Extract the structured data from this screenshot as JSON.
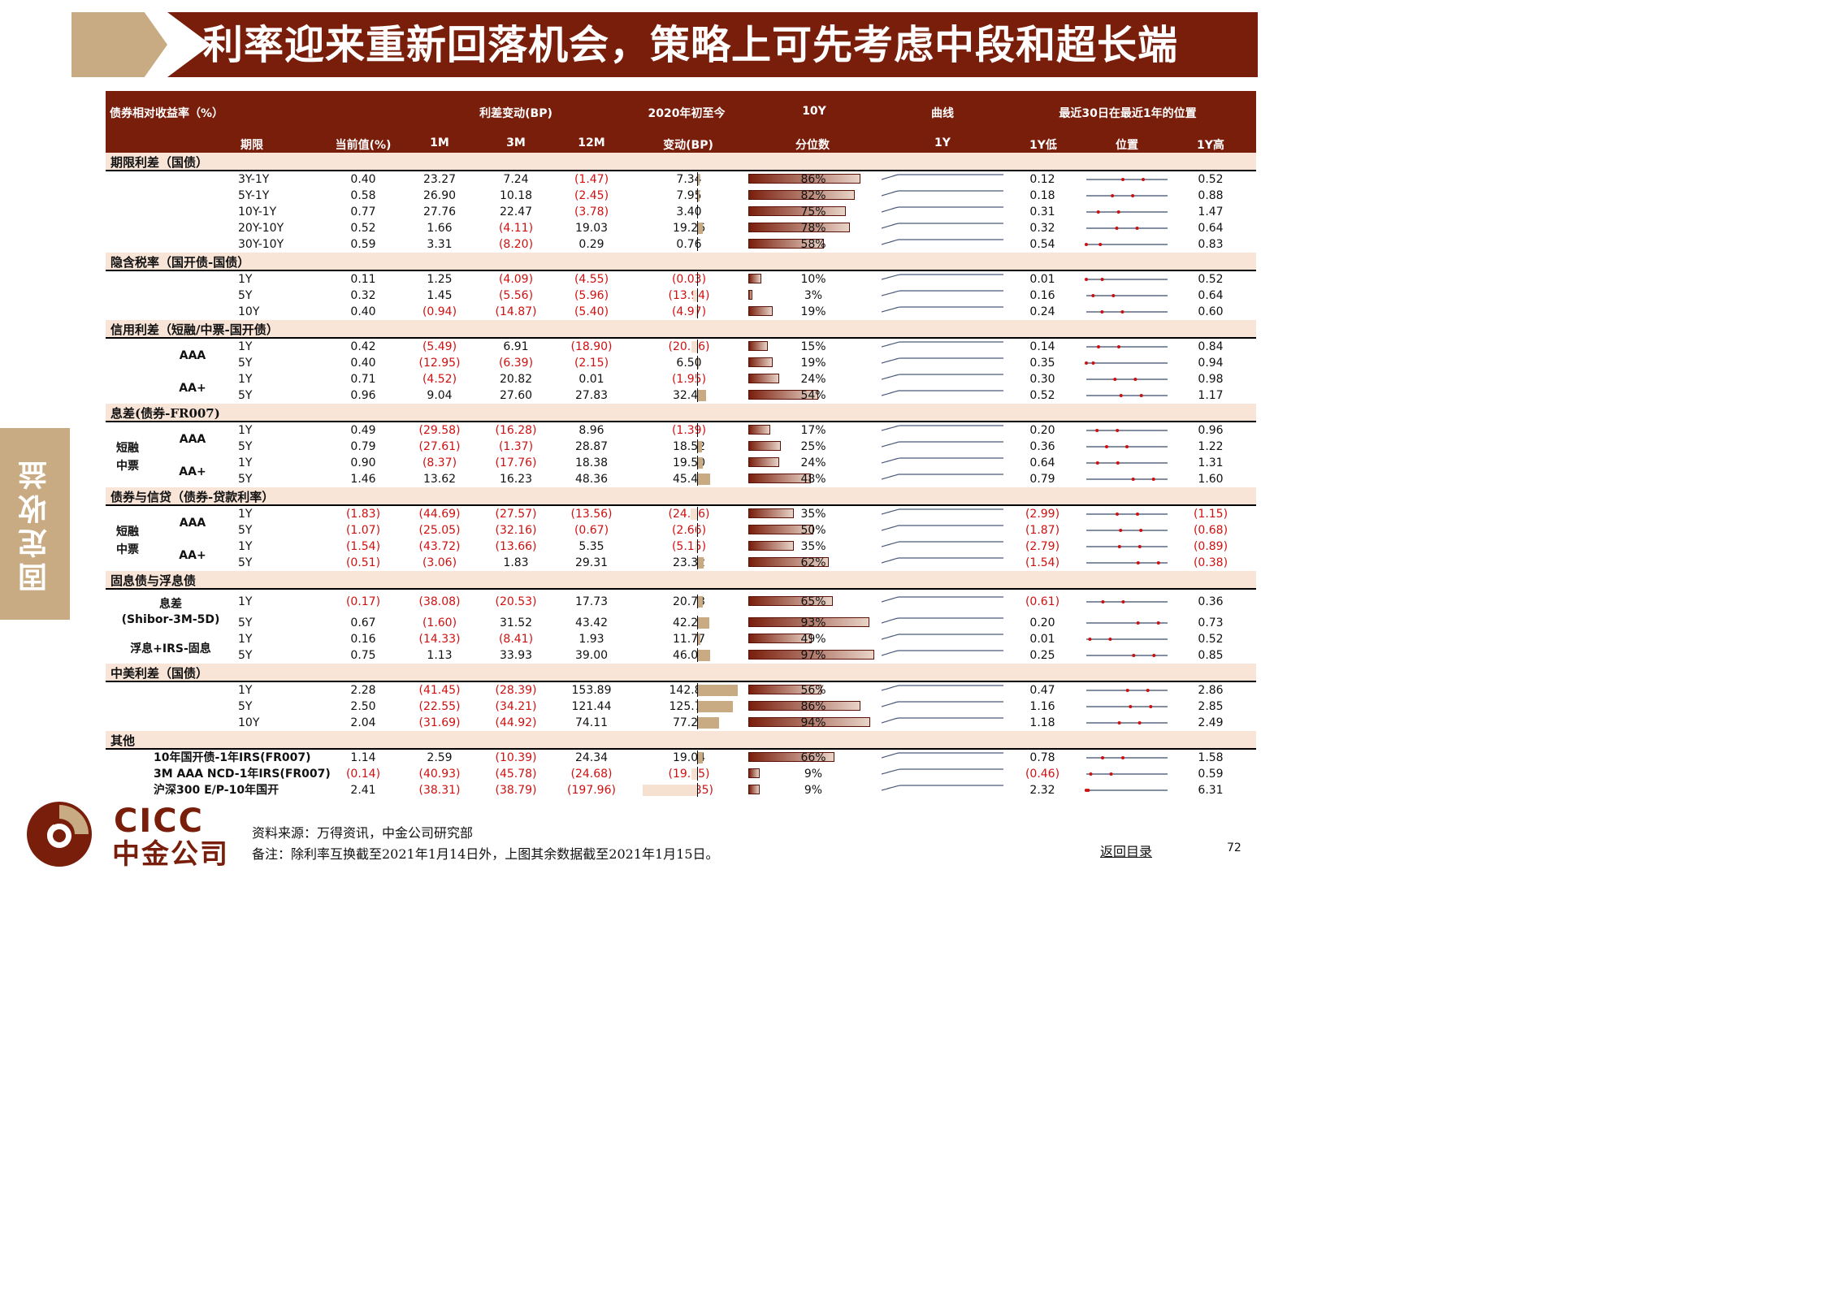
{
  "title": "利率迎来重新回落机会，策略上可先考虑中段和超长端",
  "side_label": "固定收益",
  "header": {
    "row1": {
      "col1": "债券相对收益率（%）",
      "spread": "利差变动(BP)",
      "ytd": "2020年初至今",
      "tenY": "10Y",
      "curve": "曲线",
      "pos": "最近30日在最近1年的位置"
    },
    "row2": {
      "term": "期限",
      "current": "当前值(%)",
      "m1": "1M",
      "m3": "3M",
      "m12": "12M",
      "chg": "变动(BP)",
      "pct": "分位数",
      "y1": "1Y",
      "low": "1Y低",
      "position": "位置",
      "high": "1Y高"
    }
  },
  "sections": [
    {
      "title": "期限利差（国债）",
      "groups": [],
      "rows": [
        {
          "term": "3Y-1Y",
          "cur": "0.40",
          "m1": "23.27",
          "m3": "7.24",
          "m12": "(1.47)",
          "ytd": "7.34",
          "pct": "86%",
          "low": "0.12",
          "high": "0.52"
        },
        {
          "term": "5Y-1Y",
          "cur": "0.58",
          "m1": "26.90",
          "m3": "10.18",
          "m12": "(2.45)",
          "ytd": "7.95",
          "pct": "82%",
          "low": "0.18",
          "high": "0.88"
        },
        {
          "term": "10Y-1Y",
          "cur": "0.77",
          "m1": "27.76",
          "m3": "22.47",
          "m12": "(3.78)",
          "ytd": "3.40",
          "pct": "75%",
          "low": "0.31",
          "high": "1.47"
        },
        {
          "term": "20Y-10Y",
          "cur": "0.52",
          "m1": "1.66",
          "m3": "(4.11)",
          "m12": "19.03",
          "ytd": "19.26",
          "pct": "78%",
          "low": "0.32",
          "high": "0.64"
        },
        {
          "term": "30Y-10Y",
          "cur": "0.59",
          "m1": "3.31",
          "m3": "(8.20)",
          "m12": "0.29",
          "ytd": "0.76",
          "pct": "58%",
          "low": "0.54",
          "high": "0.83"
        }
      ]
    },
    {
      "title": "隐含税率（国开债-国债）",
      "groups": [],
      "rows": [
        {
          "term": "1Y",
          "cur": "0.11",
          "m1": "1.25",
          "m3": "(4.09)",
          "m12": "(4.55)",
          "ytd": "(0.03)",
          "pct": "10%",
          "low": "0.01",
          "high": "0.52"
        },
        {
          "term": "5Y",
          "cur": "0.32",
          "m1": "1.45",
          "m3": "(5.56)",
          "m12": "(5.96)",
          "ytd": "(13.94)",
          "pct": "3%",
          "low": "0.16",
          "high": "0.64"
        },
        {
          "term": "10Y",
          "cur": "0.40",
          "m1": "(0.94)",
          "m3": "(14.87)",
          "m12": "(5.40)",
          "ytd": "(4.97)",
          "pct": "19%",
          "low": "0.24",
          "high": "0.60"
        }
      ]
    },
    {
      "title": "信用利差（短融/中票-国开债）",
      "groups": [
        "AAA",
        "AA+"
      ],
      "rows": [
        {
          "term": "1Y",
          "cur": "0.42",
          "m1": "(5.49)",
          "m3": "6.91",
          "m12": "(18.90)",
          "ytd": "(20.86)",
          "pct": "15%",
          "low": "0.14",
          "high": "0.84"
        },
        {
          "term": "5Y",
          "cur": "0.40",
          "m1": "(12.95)",
          "m3": "(6.39)",
          "m12": "(2.15)",
          "ytd": "6.50",
          "pct": "19%",
          "low": "0.35",
          "high": "0.94"
        },
        {
          "term": "1Y",
          "cur": "0.71",
          "m1": "(4.52)",
          "m3": "20.82",
          "m12": "0.01",
          "ytd": "(1.95)",
          "pct": "24%",
          "low": "0.30",
          "high": "0.98"
        },
        {
          "term": "5Y",
          "cur": "0.96",
          "m1": "9.04",
          "m3": "27.60",
          "m12": "27.83",
          "ytd": "32.48",
          "pct": "54%",
          "low": "0.52",
          "high": "1.17"
        }
      ]
    },
    {
      "title": "息差(债券-FR007)",
      "groups": [
        "AAA",
        "AA+"
      ],
      "left": "短融\n中票",
      "rows": [
        {
          "term": "1Y",
          "cur": "0.49",
          "m1": "(29.58)",
          "m3": "(16.28)",
          "m12": "8.96",
          "ytd": "(1.39)",
          "pct": "17%",
          "low": "0.20",
          "high": "0.96"
        },
        {
          "term": "5Y",
          "cur": "0.79",
          "m1": "(27.61)",
          "m3": "(1.37)",
          "m12": "28.87",
          "ytd": "18.52",
          "pct": "25%",
          "low": "0.36",
          "high": "1.22"
        },
        {
          "term": "1Y",
          "cur": "0.90",
          "m1": "(8.37)",
          "m3": "(17.76)",
          "m12": "18.38",
          "ytd": "19.50",
          "pct": "24%",
          "low": "0.64",
          "high": "1.31"
        },
        {
          "term": "5Y",
          "cur": "1.46",
          "m1": "13.62",
          "m3": "16.23",
          "m12": "48.36",
          "ytd": "45.48",
          "pct": "48%",
          "low": "0.79",
          "high": "1.60"
        }
      ]
    },
    {
      "title": "债券与信贷（债券-贷款利率）",
      "groups": [
        "AAA",
        "AA+"
      ],
      "left": "短融\n中票",
      "rows": [
        {
          "term": "1Y",
          "cur": "(1.83)",
          "m1": "(44.69)",
          "m3": "(27.57)",
          "m12": "(13.56)",
          "ytd": "(24.06)",
          "pct": "35%",
          "low": "(2.99)",
          "high": "(1.15)"
        },
        {
          "term": "5Y",
          "cur": "(1.07)",
          "m1": "(25.05)",
          "m3": "(32.16)",
          "m12": "(0.67)",
          "ytd": "(2.66)",
          "pct": "50%",
          "low": "(1.87)",
          "high": "(0.68)"
        },
        {
          "term": "1Y",
          "cur": "(1.54)",
          "m1": "(43.72)",
          "m3": "(13.66)",
          "m12": "5.35",
          "ytd": "(5.15)",
          "pct": "35%",
          "low": "(2.79)",
          "high": "(0.89)"
        },
        {
          "term": "5Y",
          "cur": "(0.51)",
          "m1": "(3.06)",
          "m3": "1.83",
          "m12": "29.31",
          "ytd": "23.32",
          "pct": "62%",
          "low": "(1.54)",
          "high": "(0.38)"
        }
      ]
    },
    {
      "title": "固息债与浮息债",
      "groups": [
        "息差",
        "(Shibor-3M-5D)",
        "浮息+IRS-固息"
      ],
      "rows": [
        {
          "term": "1Y",
          "cur": "(0.17)",
          "m1": "(38.08)",
          "m3": "(20.53)",
          "m12": "17.73",
          "ytd": "20.73",
          "pct": "65%",
          "low": "(0.61)",
          "high": "0.36"
        },
        {
          "term": "5Y",
          "cur": "0.67",
          "m1": "(1.60)",
          "m3": "31.52",
          "m12": "43.42",
          "ytd": "42.26",
          "pct": "93%",
          "low": "0.20",
          "high": "0.73"
        },
        {
          "term": "1Y",
          "cur": "0.16",
          "m1": "(14.33)",
          "m3": "(8.41)",
          "m12": "1.93",
          "ytd": "11.77",
          "pct": "49%",
          "low": "0.01",
          "high": "0.52"
        },
        {
          "term": "5Y",
          "cur": "0.75",
          "m1": "1.13",
          "m3": "33.93",
          "m12": "39.00",
          "ytd": "46.05",
          "pct": "97%",
          "low": "0.25",
          "high": "0.85"
        }
      ]
    },
    {
      "title": "中美利差（国债）",
      "groups": [],
      "rows": [
        {
          "term": "1Y",
          "cur": "2.28",
          "m1": "(41.45)",
          "m3": "(28.39)",
          "m12": "153.89",
          "ytd": "142.83",
          "pct": "56%",
          "low": "0.47",
          "high": "2.86"
        },
        {
          "term": "5Y",
          "cur": "2.50",
          "m1": "(22.55)",
          "m3": "(34.21)",
          "m12": "121.44",
          "ytd": "125.78",
          "pct": "86%",
          "low": "1.16",
          "high": "2.85"
        },
        {
          "term": "10Y",
          "cur": "2.04",
          "m1": "(31.69)",
          "m3": "(44.92)",
          "m12": "74.11",
          "ytd": "77.23",
          "pct": "94%",
          "low": "1.18",
          "high": "2.49"
        }
      ]
    },
    {
      "title": "其他",
      "groups": [],
      "rows": [
        {
          "term": "10年国开债-1年IRS(FR007)",
          "cur": "1.14",
          "m1": "2.59",
          "m3": "(10.39)",
          "m12": "24.34",
          "ytd": "19.04",
          "pct": "66%",
          "low": "0.78",
          "high": "1.58"
        },
        {
          "term": "3M AAA NCD-1年IRS(FR007)",
          "cur": "(0.14)",
          "m1": "(40.93)",
          "m3": "(45.78)",
          "m12": "(24.68)",
          "ytd": "(19.65)",
          "pct": "9%",
          "low": "(0.46)",
          "high": "0.59"
        },
        {
          "term": "沪深300 E/P-10年国开",
          "cur": "2.41",
          "m1": "(38.31)",
          "m3": "(38.79)",
          "m12": "(197.96)",
          "ytd": "(190.85)",
          "pct": "9%",
          "low": "2.32",
          "high": "6.31"
        }
      ]
    }
  ],
  "logo": {
    "en": "CICC",
    "cn": "中金公司"
  },
  "source": "资料来源：万得资讯，中金公司研究部",
  "remark": "备注：除利率互换截至2021年1月14日外，上图其余数据截至2021年1月15日。",
  "back_link": "返回目录",
  "page_number": "72",
  "colors": {
    "brand": "#7a1e0c",
    "accent": "#c8ab82",
    "negative": "#d01010",
    "section_bg": "#f8e5d8"
  }
}
